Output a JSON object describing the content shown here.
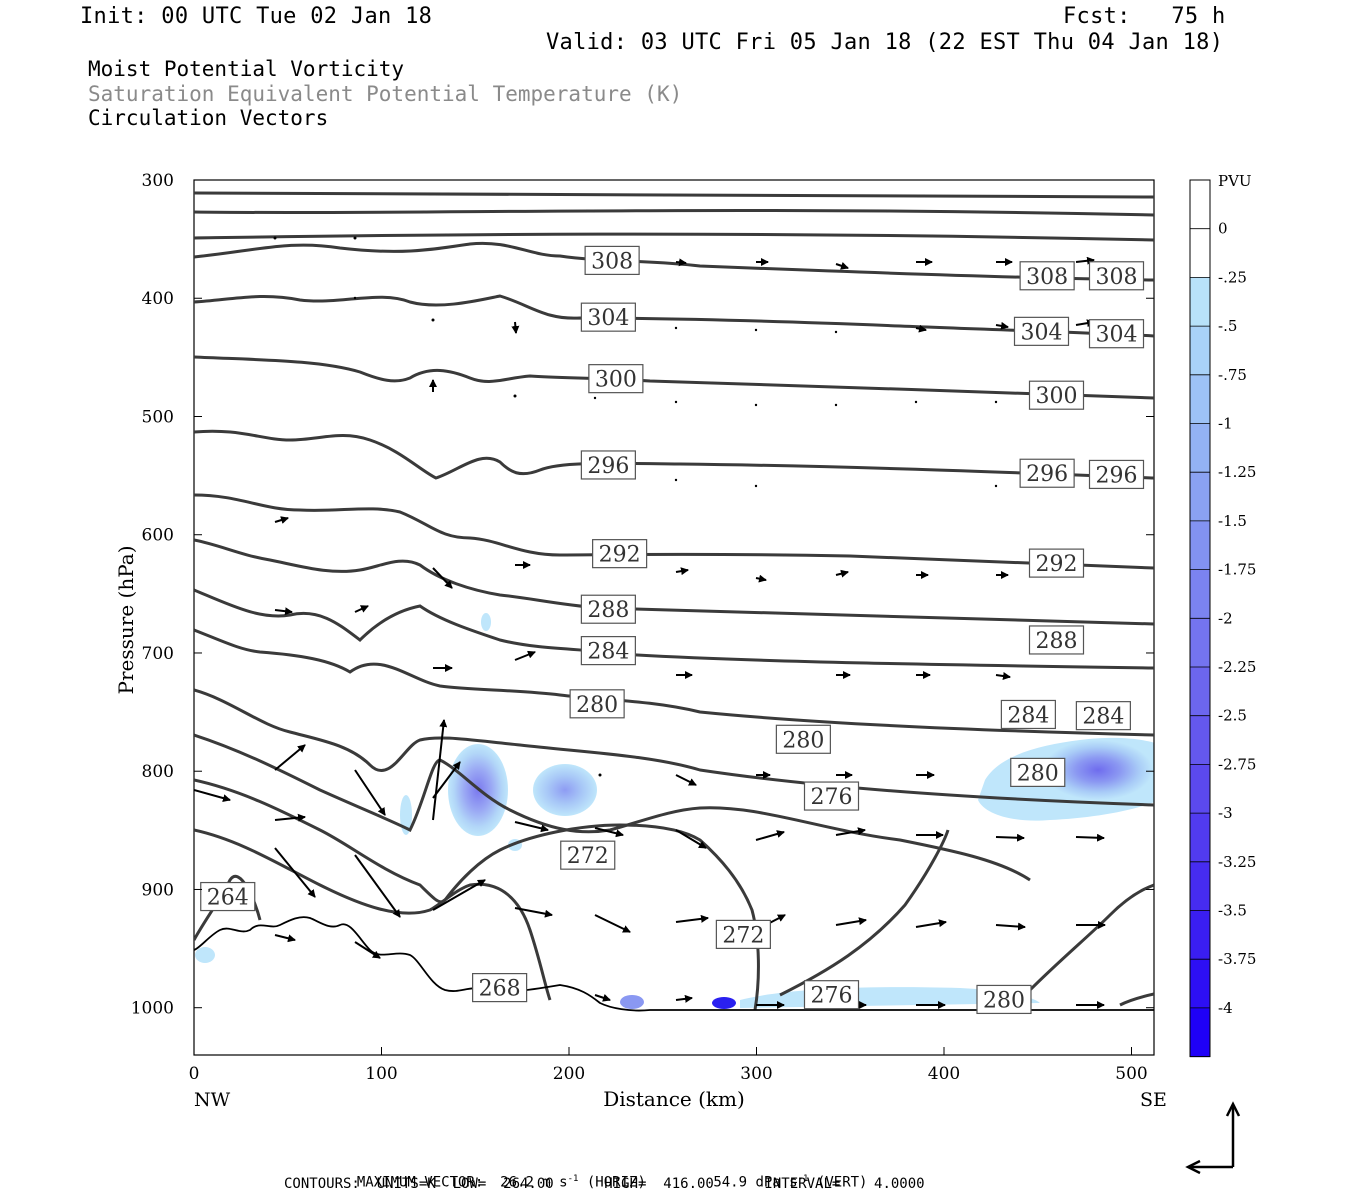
{
  "header": {
    "init": "Init: 00 UTC Tue 02 Jan 18",
    "fcst": "Fcst:   75 h",
    "valid": "Valid: 03 UTC Fri 05 Jan 18 (22 EST Thu 04 Jan 18)"
  },
  "fields": {
    "line1": "Moist Potential Vorticity",
    "line2": "Saturation Equivalent Potential Temperature (K)",
    "line3": "Circulation Vectors"
  },
  "footer": {
    "max_vector_label": "MAXIMUM VECTOR:",
    "max_horiz": "26.2 m s",
    "horiz_tag": "(HORIZ)",
    "max_vert": "54.9 dPa s",
    "vert_tag": "(VERT)",
    "exp": "-1",
    "contours": "CONTOURS:  UNITS=K  LOW=  264.00      HIGH=  416.00      INTERVAL=    4.0000"
  },
  "chart_data": {
    "type": "heatmap",
    "xlabel": "Distance (km)",
    "ylabel": "Pressure (hPa)",
    "xlim": [
      0,
      512
    ],
    "ylim": [
      1040,
      300
    ],
    "x_ticks": [
      "0",
      "100",
      "200",
      "300",
      "400",
      "500"
    ],
    "y_ticks": [
      "300",
      "400",
      "500",
      "600",
      "700",
      "800",
      "900",
      "1000"
    ],
    "x_end_labels": {
      "left": "NW",
      "right": "SE"
    },
    "colorbar": {
      "unit": "PVU",
      "levels": [
        "0",
        "-.25",
        "-.5",
        "-.75",
        "-1",
        "-1.25",
        "-1.5",
        "-1.75",
        "-2",
        "-2.25",
        "-2.5",
        "-2.75",
        "-3",
        "-3.25",
        "-3.5",
        "-3.75",
        "-4"
      ],
      "colors": [
        "#ffffff",
        "#ffffff",
        "#b8e2fa",
        "#a9d2f8",
        "#9dc2f6",
        "#93b2f4",
        "#8aa2f2",
        "#8292f1",
        "#7b83f0",
        "#7474ef",
        "#6c66ee",
        "#6458ee",
        "#5b49ee",
        "#513bef",
        "#462cf0",
        "#3a1ef2",
        "#2d0ff4",
        "#1f00f7"
      ]
    },
    "contour_labels": [
      {
        "text": "308",
        "x": 223,
        "p": 368
      },
      {
        "text": "308",
        "x": 455,
        "p": 381
      },
      {
        "text": "308",
        "x": 492,
        "p": 381
      },
      {
        "text": "304",
        "x": 221,
        "p": 416
      },
      {
        "text": "304",
        "x": 452,
        "p": 428
      },
      {
        "text": "304",
        "x": 492,
        "p": 430
      },
      {
        "text": "300",
        "x": 225,
        "p": 468
      },
      {
        "text": "300",
        "x": 460,
        "p": 482
      },
      {
        "text": "296",
        "x": 221,
        "p": 541
      },
      {
        "text": "296",
        "x": 455,
        "p": 548
      },
      {
        "text": "296",
        "x": 492,
        "p": 549
      },
      {
        "text": "292",
        "x": 227,
        "p": 616
      },
      {
        "text": "292",
        "x": 460,
        "p": 624
      },
      {
        "text": "288",
        "x": 221,
        "p": 663
      },
      {
        "text": "288",
        "x": 460,
        "p": 689
      },
      {
        "text": "284",
        "x": 221,
        "p": 698
      },
      {
        "text": "284",
        "x": 445,
        "p": 752
      },
      {
        "text": "284",
        "x": 485,
        "p": 753
      },
      {
        "text": "280",
        "x": 215,
        "p": 743
      },
      {
        "text": "280",
        "x": 325,
        "p": 773
      },
      {
        "text": "280",
        "x": 450,
        "p": 801
      },
      {
        "text": "276",
        "x": 340,
        "p": 821
      },
      {
        "text": "276",
        "x": 340,
        "p": 989
      },
      {
        "text": "272",
        "x": 210,
        "p": 871
      },
      {
        "text": "272",
        "x": 293,
        "p": 938
      },
      {
        "text": "268",
        "x": 163,
        "p": 983
      },
      {
        "text": "280",
        "x": 432,
        "p": 993
      },
      {
        "text": "264",
        "x": 18,
        "p": 906
      }
    ]
  }
}
